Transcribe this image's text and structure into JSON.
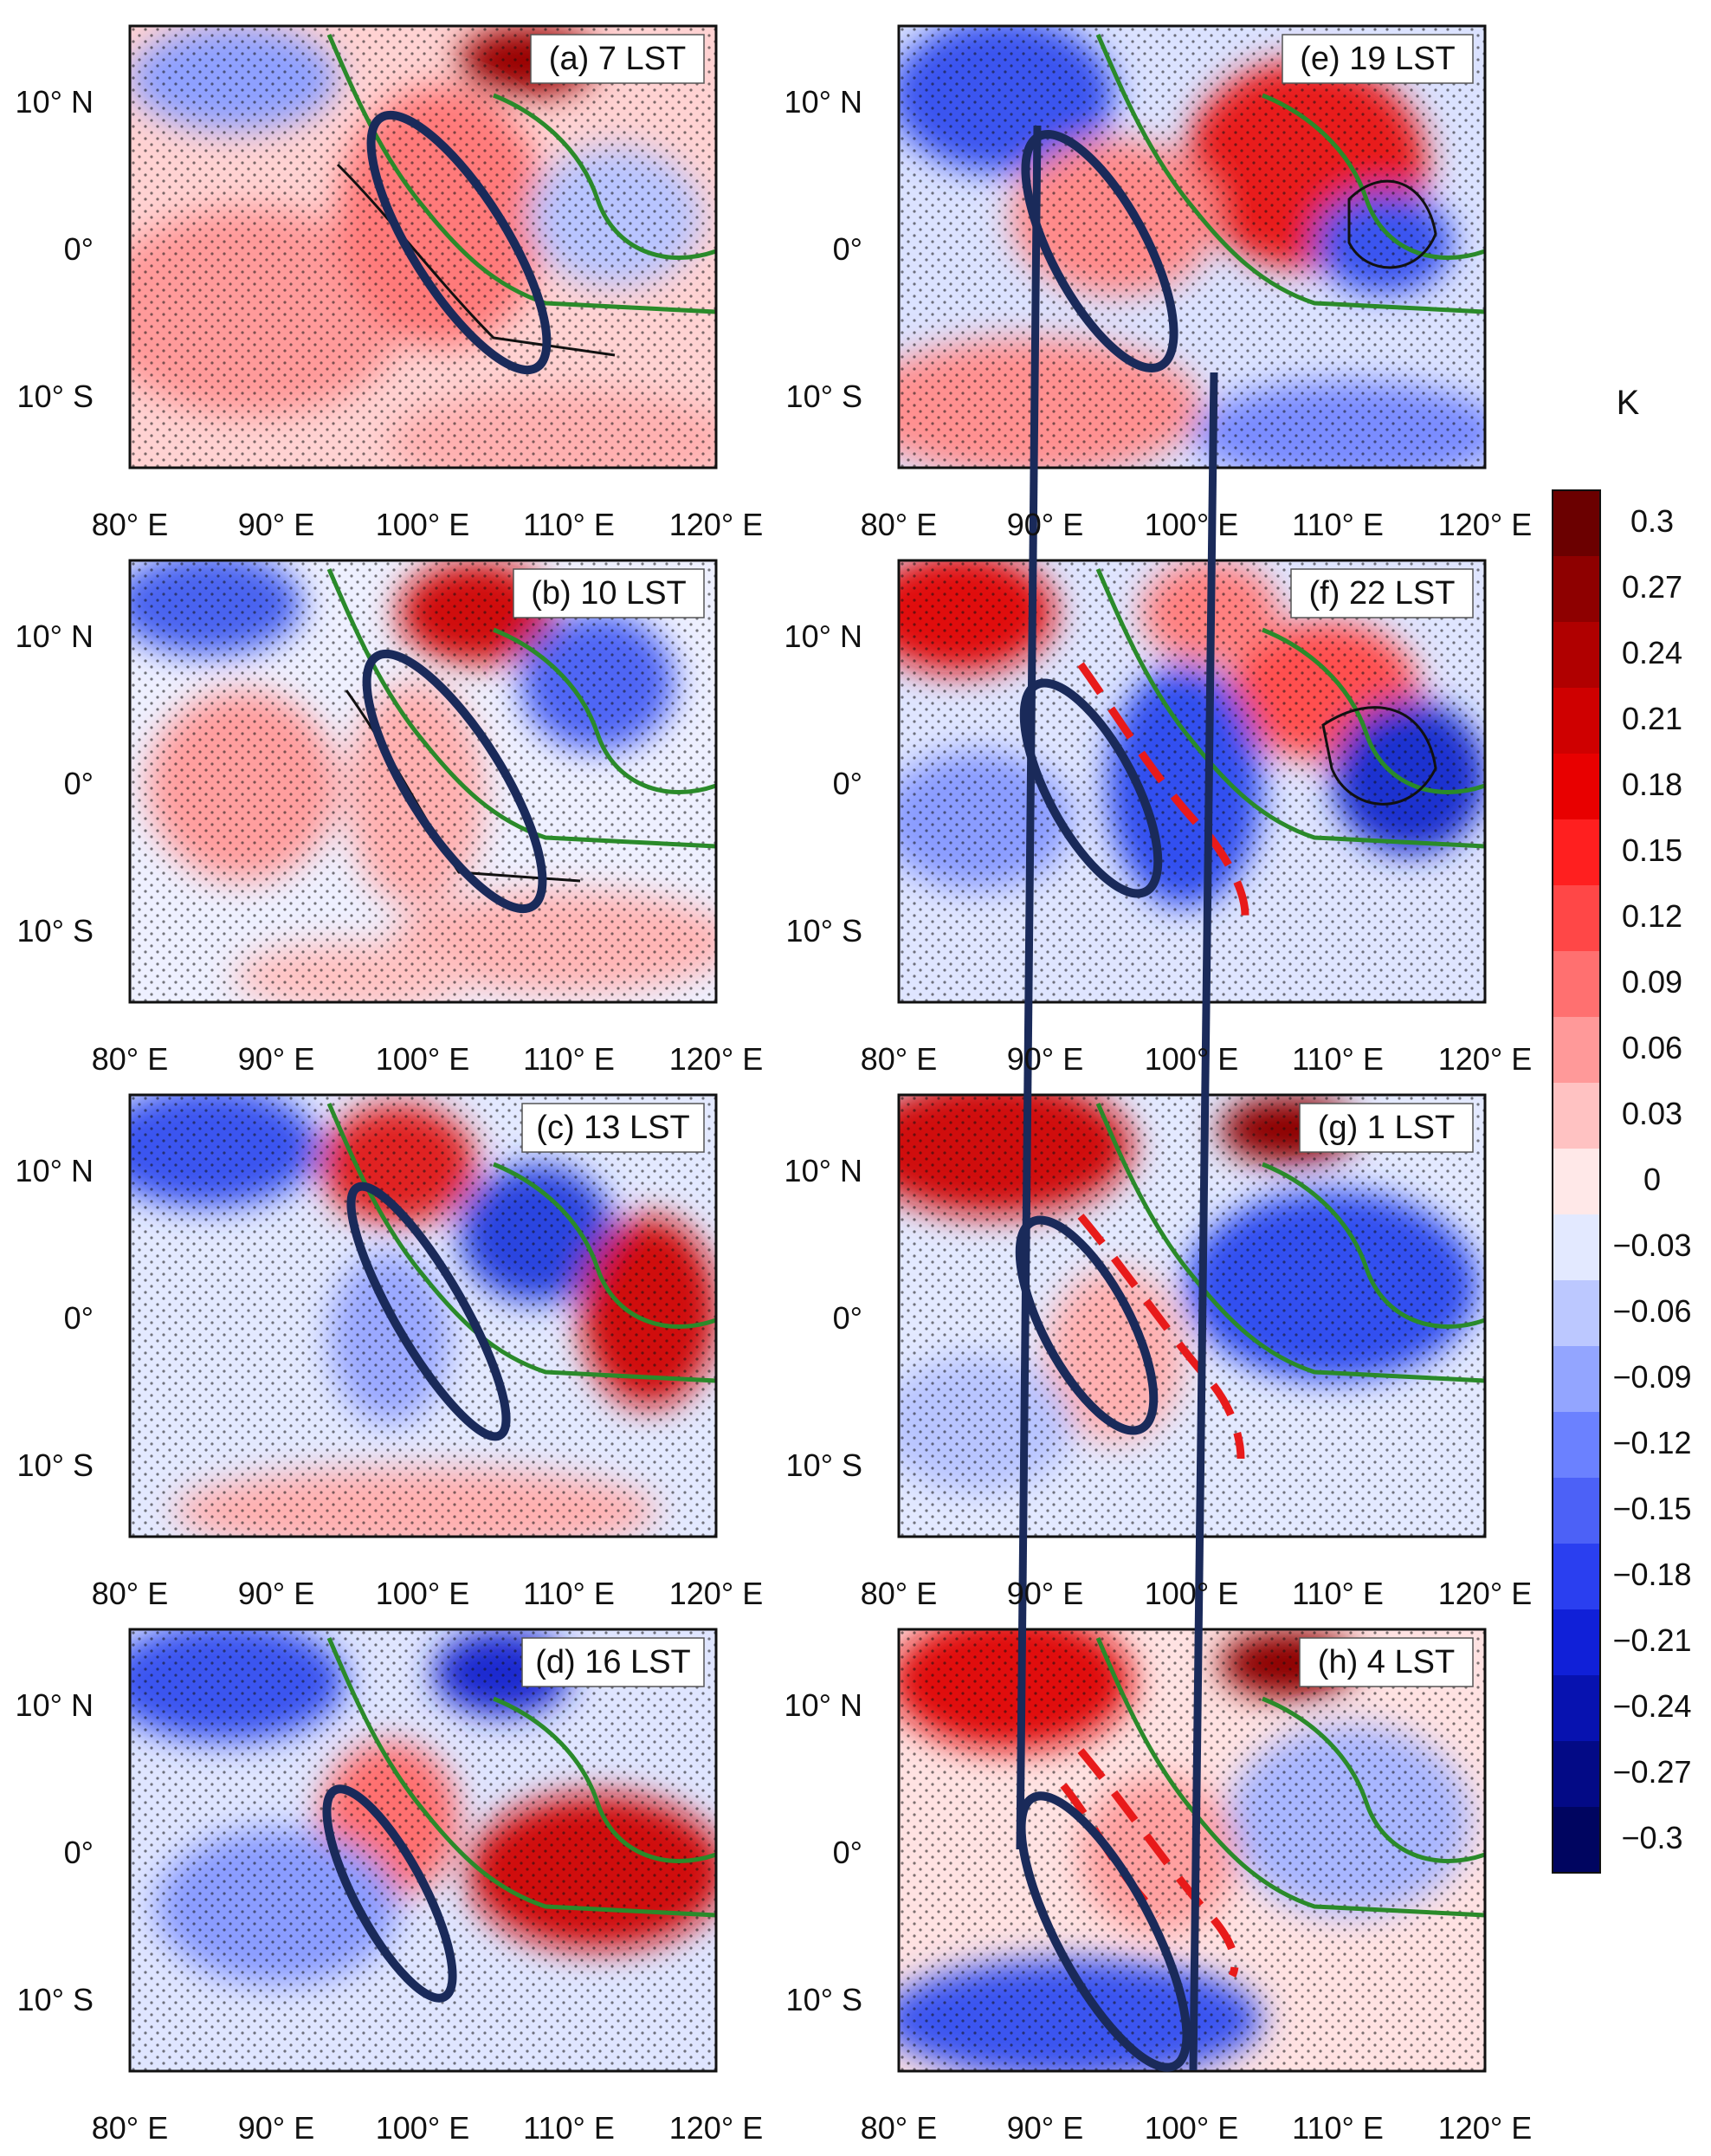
{
  "chart_data": {
    "type": "heatmap",
    "description_unit": "K",
    "colorbar": {
      "unit": "K",
      "levels": [
        "0.3",
        "0.27",
        "0.24",
        "0.21",
        "0.18",
        "0.15",
        "0.12",
        "0.09",
        "0.06",
        "0.03",
        "0",
        "−0.03",
        "−0.06",
        "−0.09",
        "−0.12",
        "−0.15",
        "−0.18",
        "−0.21",
        "−0.24",
        "−0.27",
        "−0.3"
      ],
      "colors": [
        "#6b0000",
        "#8e0000",
        "#b00000",
        "#cf0000",
        "#e80000",
        "#ff1f1f",
        "#ff4747",
        "#ff7070",
        "#ff9999",
        "#ffc2c2",
        "#ffe8e8",
        "#e3e9ff",
        "#bcc8ff",
        "#93a5ff",
        "#6b81ff",
        "#4c61f7",
        "#2a3ff0",
        "#1020d8",
        "#0712b0",
        "#030a86",
        "#000560"
      ]
    },
    "axes": {
      "x_ticks": [
        "80° E",
        "90° E",
        "100° E",
        "110° E",
        "120° E"
      ],
      "y_ticks": [
        "10° N",
        "0°",
        "10° S"
      ],
      "xlim": [
        80,
        120
      ],
      "ylim": [
        -15,
        15
      ]
    },
    "panels": [
      {
        "id": "a",
        "title": "(a) 7 LST",
        "anomaly": "warm"
      },
      {
        "id": "e",
        "title": "(e) 19 LST",
        "anomaly": "mixed"
      },
      {
        "id": "b",
        "title": "(b) 10 LST",
        "anomaly": "mixed"
      },
      {
        "id": "f",
        "title": "(f) 22 LST",
        "anomaly": "cool"
      },
      {
        "id": "c",
        "title": "(c) 13 LST",
        "anomaly": "cool"
      },
      {
        "id": "g",
        "title": "(g) 1 LST",
        "anomaly": "cool"
      },
      {
        "id": "d",
        "title": "(d) 16 LST",
        "anomaly": "mixed"
      },
      {
        "id": "h",
        "title": "(h) 4 LST",
        "anomaly": "mixed"
      }
    ]
  }
}
